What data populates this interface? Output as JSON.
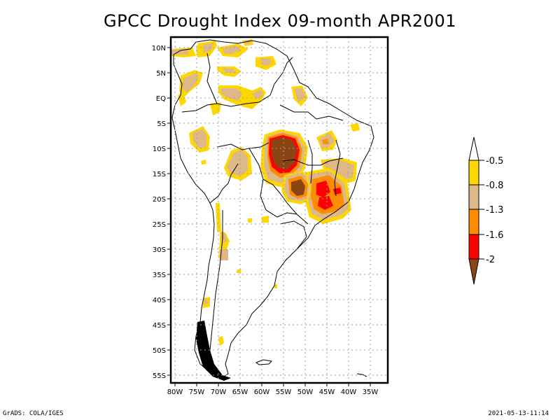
{
  "title": "GPCC Drought Index 09-month APR2001",
  "footer": {
    "left": "GrADS: COLA/IGES",
    "right": "2021-05-13-11:14"
  },
  "map": {
    "region": "South America",
    "lon_range": [
      -81,
      -31
    ],
    "lat_range": [
      -56,
      12
    ],
    "lat_ticks": [
      {
        "value": 10,
        "label": "10N"
      },
      {
        "value": 5,
        "label": "5N"
      },
      {
        "value": 0,
        "label": "EQ"
      },
      {
        "value": -5,
        "label": "5S"
      },
      {
        "value": -10,
        "label": "10S"
      },
      {
        "value": -15,
        "label": "15S"
      },
      {
        "value": -20,
        "label": "20S"
      },
      {
        "value": -25,
        "label": "25S"
      },
      {
        "value": -30,
        "label": "30S"
      },
      {
        "value": -35,
        "label": "35S"
      },
      {
        "value": -40,
        "label": "40S"
      },
      {
        "value": -45,
        "label": "45S"
      },
      {
        "value": -50,
        "label": "50S"
      },
      {
        "value": -55,
        "label": "55S"
      }
    ],
    "lon_ticks": [
      {
        "value": -80,
        "label": "80W"
      },
      {
        "value": -75,
        "label": "75W"
      },
      {
        "value": -70,
        "label": "70W"
      },
      {
        "value": -65,
        "label": "65W"
      },
      {
        "value": -60,
        "label": "60W"
      },
      {
        "value": -55,
        "label": "55W"
      },
      {
        "value": -50,
        "label": "50W"
      },
      {
        "value": -45,
        "label": "45W"
      },
      {
        "value": -40,
        "label": "40W"
      },
      {
        "value": -35,
        "label": "35W"
      }
    ],
    "grid": true
  },
  "colorbar": {
    "levels": [
      "-0.5",
      "-0.8",
      "-1.3",
      "-1.6",
      "-2"
    ],
    "colors": {
      "above": "#ffffff",
      "c1": "#ffd700",
      "c2": "#deb887",
      "c3": "#ff8c00",
      "c4": "#ff0000",
      "below": "#8b4513"
    },
    "bins": [
      {
        "range": "> -0.5",
        "color": "#ffffff"
      },
      {
        "range": "-0.8 to -0.5",
        "color": "#ffd700"
      },
      {
        "range": "-1.3 to -0.8",
        "color": "#deb887"
      },
      {
        "range": "-1.6 to -1.3",
        "color": "#ff8c00"
      },
      {
        "range": "-2 to -1.6",
        "color": "#ff0000"
      },
      {
        "range": "< -2",
        "color": "#8b4513"
      }
    ]
  },
  "drought_regions": [
    {
      "name": "central-brazil-core",
      "lon": -55,
      "lat": -10.5,
      "category": "< -2"
    },
    {
      "name": "mato-grosso-do-sul",
      "lon": -52.5,
      "lat": -18,
      "category": "< -2"
    },
    {
      "name": "minas-gerais",
      "lon": -45,
      "lat": -19,
      "category": "-2 to -1.6"
    },
    {
      "name": "northern-peru",
      "lon": -74,
      "lat": -8,
      "category": "-1.3 to -0.8"
    },
    {
      "name": "bolivia",
      "lon": -64,
      "lat": -14,
      "category": "-1.3 to -0.8"
    },
    {
      "name": "colombia",
      "lon": -73,
      "lat": 3,
      "category": "-1.3 to -0.8"
    },
    {
      "name": "northern-brazil",
      "lon": -63,
      "lat": 1,
      "category": "-1.3 to -0.8"
    },
    {
      "name": "amapa",
      "lon": -51,
      "lat": 1,
      "category": "-1.3 to -0.8"
    },
    {
      "name": "argentina-andes",
      "lon": -69,
      "lat": -29,
      "category": "-1.3 to -0.8"
    }
  ]
}
